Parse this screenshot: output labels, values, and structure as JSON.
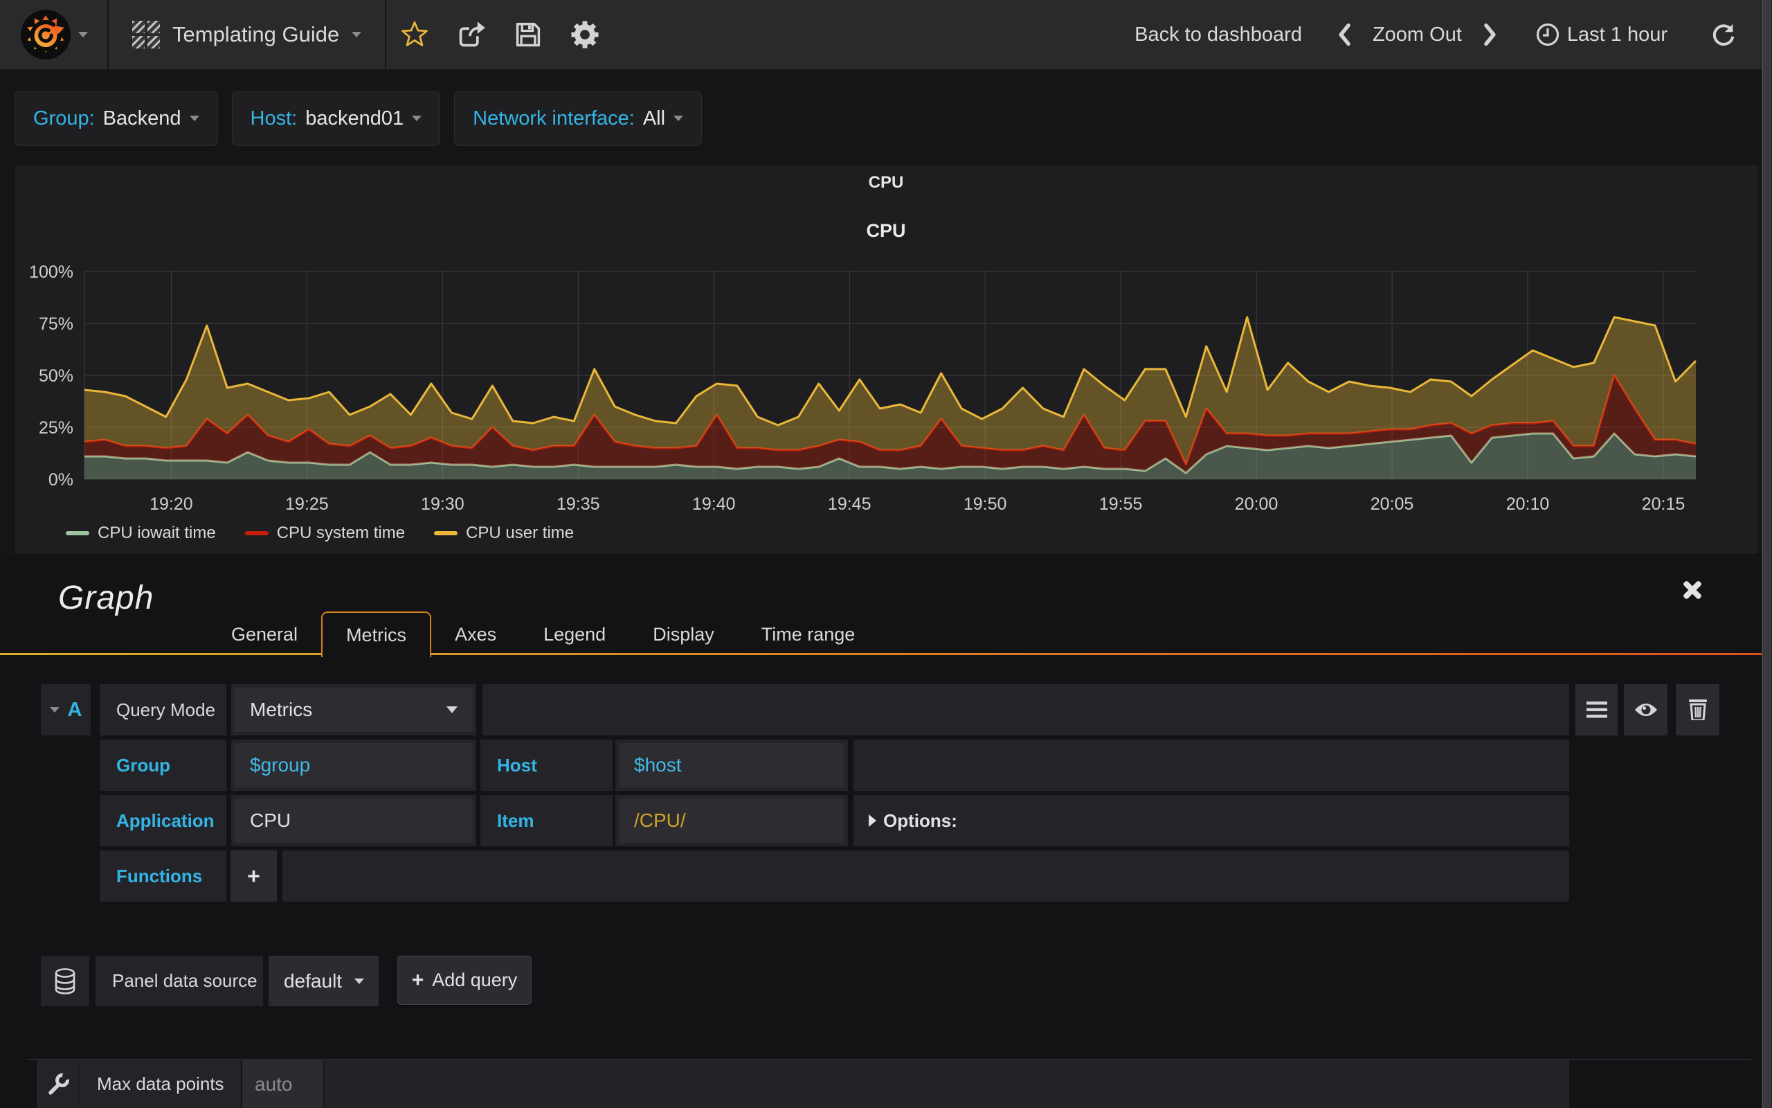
{
  "navbar": {
    "dashboard_title": "Templating Guide",
    "back_to_dashboard": "Back to dashboard",
    "zoom_out": "Zoom Out",
    "time_range": "Last 1 hour"
  },
  "variables": [
    {
      "label": "Group:",
      "value": "Backend"
    },
    {
      "label": "Host:",
      "value": "backend01"
    },
    {
      "label": "Network interface:",
      "value": "All"
    }
  ],
  "panel": {
    "title": "CPU"
  },
  "chart_data": {
    "type": "area",
    "stacked": true,
    "title": "CPU",
    "ylabel": "percent",
    "y_range": [
      0,
      100
    ],
    "x_range": [
      1156.8,
      1216.2
    ],
    "grid": true,
    "legend_position": "bottom-left",
    "y_ticks": [
      {
        "v": 0,
        "label": "0%"
      },
      {
        "v": 25,
        "label": "25%"
      },
      {
        "v": 50,
        "label": "50%"
      },
      {
        "v": 75,
        "label": "75%"
      },
      {
        "v": 100,
        "label": "100%"
      }
    ],
    "x_ticks": [
      {
        "t": 1160,
        "label": "19:20"
      },
      {
        "t": 1165,
        "label": "19:25"
      },
      {
        "t": 1170,
        "label": "19:30"
      },
      {
        "t": 1175,
        "label": "19:35"
      },
      {
        "t": 1180,
        "label": "19:40"
      },
      {
        "t": 1185,
        "label": "19:45"
      },
      {
        "t": 1190,
        "label": "19:50"
      },
      {
        "t": 1195,
        "label": "19:55"
      },
      {
        "t": 1200,
        "label": "20:00"
      },
      {
        "t": 1205,
        "label": "20:05"
      },
      {
        "t": 1210,
        "label": "20:10"
      },
      {
        "t": 1215,
        "label": "20:15"
      }
    ],
    "series": [
      {
        "name": "CPU iowait time",
        "color": "#9EC69E",
        "values": [
          11,
          11,
          10,
          10,
          9,
          9,
          9,
          8,
          13,
          9,
          8,
          8,
          7,
          7,
          13,
          7,
          7,
          8,
          7,
          7,
          6,
          7,
          6,
          6,
          7,
          6,
          6,
          6,
          6,
          7,
          6,
          6,
          5,
          6,
          6,
          5,
          6,
          10,
          6,
          6,
          5,
          6,
          5,
          6,
          6,
          5,
          6,
          6,
          5,
          6,
          5,
          5,
          4,
          10,
          3,
          12,
          16,
          15,
          14,
          15,
          16,
          15,
          16,
          17,
          18,
          19,
          20,
          21,
          8,
          20,
          21,
          22,
          22,
          10,
          11,
          22,
          12,
          11,
          12,
          11
        ]
      },
      {
        "name": "CPU system time",
        "color": "#C3200B",
        "values": [
          7,
          8,
          6,
          6,
          6,
          7,
          20,
          14,
          18,
          12,
          10,
          16,
          10,
          9,
          8,
          8,
          9,
          12,
          9,
          8,
          19,
          9,
          8,
          10,
          9,
          25,
          12,
          10,
          9,
          8,
          10,
          25,
          10,
          9,
          8,
          9,
          10,
          9,
          12,
          8,
          9,
          10,
          24,
          10,
          9,
          9,
          8,
          10,
          9,
          25,
          10,
          9,
          24,
          18,
          4,
          22,
          6,
          7,
          7,
          6,
          6,
          7,
          6,
          6,
          6,
          5,
          6,
          6,
          14,
          6,
          6,
          5,
          6,
          6,
          5,
          28,
          22,
          8,
          7,
          6
        ]
      },
      {
        "name": "CPU user time",
        "color": "#EAB839",
        "values": [
          25,
          23,
          24,
          19,
          15,
          32,
          45,
          22,
          15,
          21,
          20,
          15,
          25,
          15,
          14,
          26,
          15,
          26,
          16,
          14,
          20,
          12,
          13,
          14,
          12,
          22,
          17,
          15,
          13,
          12,
          24,
          15,
          30,
          15,
          12,
          16,
          30,
          14,
          30,
          20,
          22,
          16,
          22,
          18,
          14,
          20,
          30,
          18,
          16,
          22,
          30,
          24,
          25,
          25,
          23,
          30,
          20,
          56,
          22,
          35,
          25,
          20,
          25,
          22,
          20,
          18,
          22,
          20,
          18,
          22,
          28,
          35,
          30,
          38,
          40,
          28,
          42,
          55,
          28,
          40
        ]
      }
    ]
  },
  "editor": {
    "title": "Graph",
    "tabs": [
      "General",
      "Metrics",
      "Axes",
      "Legend",
      "Display",
      "Time range"
    ],
    "active_tab": "Metrics"
  },
  "query": {
    "letter": "A",
    "query_mode_label": "Query Mode",
    "query_mode_value": "Metrics",
    "group_label": "Group",
    "group_value": "$group",
    "host_label": "Host",
    "host_value": "$host",
    "application_label": "Application",
    "application_value": "CPU",
    "item_label": "Item",
    "item_value": "/CPU/",
    "options_label": "Options:",
    "functions_label": "Functions",
    "add_function_label": "+"
  },
  "datasource": {
    "label": "Panel data source",
    "value": "default",
    "add_query_plus": "+",
    "add_query_label": "Add query"
  },
  "footer": {
    "max_data_points_label": "Max data points",
    "max_data_points_placeholder": "auto"
  }
}
